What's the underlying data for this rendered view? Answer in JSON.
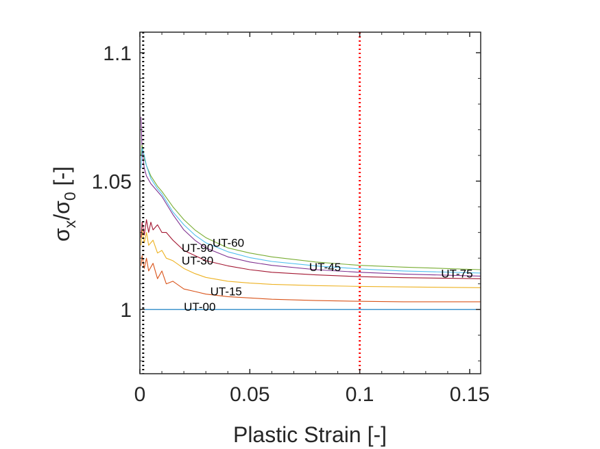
{
  "chart_data": {
    "type": "line",
    "title": "",
    "xlabel": "Plastic Strain [-]",
    "ylabel": {
      "sigma1": "σ",
      "sub1": "x",
      "slash": "/",
      "sigma2": "σ",
      "sub2": "0",
      "unit": " [-]"
    },
    "xlim": [
      0,
      0.155
    ],
    "ylim": [
      0.975,
      1.108
    ],
    "x_ticks": [
      {
        "value": 0,
        "label": "0"
      },
      {
        "value": 0.05,
        "label": "0.05"
      },
      {
        "value": 0.1,
        "label": "0.1"
      },
      {
        "value": 0.15,
        "label": "0.15"
      }
    ],
    "y_ticks": [
      {
        "value": 1.0,
        "label": "1"
      },
      {
        "value": 1.05,
        "label": "1.05"
      },
      {
        "value": 1.1,
        "label": "1.1"
      }
    ],
    "grid": false,
    "vertical_lines": [
      {
        "x": 0.0015,
        "color": "#000000",
        "style": "dotted"
      },
      {
        "x": 0.1,
        "color": "#ff0000",
        "style": "dotted"
      }
    ],
    "series": [
      {
        "name": "UT-00",
        "color": "#0072BD",
        "x": [
          0,
          0.155
        ],
        "y": [
          1.0,
          1.0
        ],
        "label_at": {
          "x": 0.02,
          "y": 0.9995
        }
      },
      {
        "name": "UT-15",
        "color": "#D95319",
        "x": [
          0.0005,
          0.001,
          0.002,
          0.003,
          0.004,
          0.006,
          0.008,
          0.01,
          0.012,
          0.015,
          0.02,
          0.025,
          0.03,
          0.04,
          0.05,
          0.06,
          0.08,
          0.1,
          0.12,
          0.155
        ],
        "y": [
          1.017,
          1.021,
          1.016,
          1.02,
          1.015,
          1.018,
          1.012,
          1.015,
          1.01,
          1.011,
          1.008,
          1.007,
          1.006,
          1.005,
          1.0045,
          1.004,
          1.0035,
          1.0032,
          1.003,
          1.003
        ],
        "label_at": {
          "x": 0.032,
          "y": 1.0055
        }
      },
      {
        "name": "UT-30",
        "color": "#EDB120",
        "x": [
          0.0005,
          0.001,
          0.002,
          0.003,
          0.004,
          0.006,
          0.008,
          0.01,
          0.012,
          0.015,
          0.02,
          0.025,
          0.03,
          0.04,
          0.05,
          0.06,
          0.08,
          0.1,
          0.12,
          0.155
        ],
        "y": [
          1.025,
          1.031,
          1.026,
          1.03,
          1.025,
          1.027,
          1.022,
          1.023,
          1.02,
          1.019,
          1.016,
          1.014,
          1.0125,
          1.011,
          1.0103,
          1.0098,
          1.0093,
          1.009,
          1.0088,
          1.0085
        ],
        "label_at": {
          "x": 0.019,
          "y": 1.0175
        }
      },
      {
        "name": "UT-45",
        "color": "#7E2F8E",
        "x": [
          0.0005,
          0.001,
          0.002,
          0.003,
          0.005,
          0.008,
          0.01,
          0.015,
          0.02,
          0.025,
          0.03,
          0.04,
          0.05,
          0.06,
          0.08,
          0.1,
          0.12,
          0.155
        ],
        "y": [
          1.075,
          1.062,
          1.055,
          1.052,
          1.049,
          1.046,
          1.044,
          1.037,
          1.031,
          1.027,
          1.024,
          1.0205,
          1.0185,
          1.0172,
          1.0155,
          1.0145,
          1.0138,
          1.013
        ],
        "label_at": {
          "x": 0.077,
          "y": 1.015
        }
      },
      {
        "name": "UT-60",
        "color": "#77AC30",
        "x": [
          0.0005,
          0.001,
          0.002,
          0.003,
          0.005,
          0.008,
          0.01,
          0.015,
          0.02,
          0.025,
          0.03,
          0.04,
          0.05,
          0.06,
          0.08,
          0.1,
          0.12,
          0.155
        ],
        "y": [
          1.06,
          1.064,
          1.059,
          1.056,
          1.052,
          1.048,
          1.046,
          1.04,
          1.035,
          1.031,
          1.028,
          1.024,
          1.022,
          1.0205,
          1.0185,
          1.0172,
          1.0165,
          1.0155
        ],
        "label_at": {
          "x": 0.033,
          "y": 1.0245
        }
      },
      {
        "name": "UT-75",
        "color": "#4DBEEE",
        "x": [
          0.0005,
          0.001,
          0.002,
          0.003,
          0.005,
          0.008,
          0.01,
          0.015,
          0.02,
          0.025,
          0.03,
          0.04,
          0.05,
          0.06,
          0.08,
          0.1,
          0.12,
          0.155
        ],
        "y": [
          1.055,
          1.063,
          1.06,
          1.056,
          1.051,
          1.047,
          1.045,
          1.038,
          1.033,
          1.029,
          1.026,
          1.0225,
          1.0202,
          1.0187,
          1.017,
          1.0158,
          1.015,
          1.0142
        ],
        "label_at": {
          "x": 0.137,
          "y": 1.0125
        }
      },
      {
        "name": "UT-90",
        "color": "#A2142F",
        "x": [
          0.0005,
          0.001,
          0.002,
          0.003,
          0.004,
          0.005,
          0.006,
          0.008,
          0.01,
          0.012,
          0.015,
          0.02,
          0.025,
          0.03,
          0.04,
          0.05,
          0.06,
          0.08,
          0.1,
          0.12,
          0.155
        ],
        "y": [
          1.028,
          1.034,
          1.029,
          1.035,
          1.03,
          1.034,
          1.031,
          1.033,
          1.03,
          1.03,
          1.027,
          1.023,
          1.021,
          1.019,
          1.017,
          1.0155,
          1.0145,
          1.0135,
          1.0128,
          1.0124,
          1.012
        ],
        "label_at": {
          "x": 0.019,
          "y": 1.0225
        }
      }
    ]
  }
}
